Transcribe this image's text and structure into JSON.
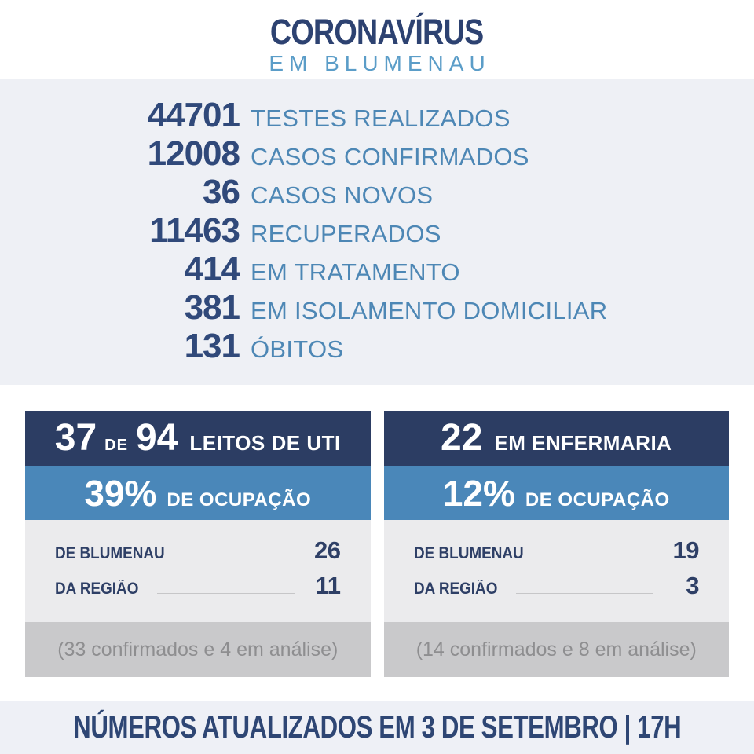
{
  "header": {
    "title": "CORONAVÍRUS",
    "subtitle": "EM BLUMENAU"
  },
  "stats": {
    "items": [
      {
        "value": "44701",
        "label": "TESTES REALIZADOS"
      },
      {
        "value": "12008",
        "label": "CASOS CONFIRMADOS"
      },
      {
        "value": "36",
        "label": "CASOS NOVOS"
      },
      {
        "value": "11463",
        "label": "RECUPERADOS"
      },
      {
        "value": "414",
        "label": "EM TRATAMENTO"
      },
      {
        "value": "381",
        "label": "EM ISOLAMENTO DOMICILIAR"
      },
      {
        "value": "131",
        "label": "ÓBITOS"
      }
    ]
  },
  "cards": [
    {
      "header": {
        "value": "37",
        "connector": "DE",
        "total": "94",
        "label": "LEITOS DE UTI"
      },
      "occupancy": {
        "value": "39%",
        "label": "DE OCUPAÇÃO"
      },
      "rows": [
        {
          "label": "DE BLUMENAU",
          "value": "26"
        },
        {
          "label": "DA REGIÃO",
          "value": "11"
        }
      ],
      "note": "(33 confirmados e 4 em análise)"
    },
    {
      "header": {
        "value": "22",
        "label": "EM ENFERMARIA"
      },
      "occupancy": {
        "value": "12%",
        "label": "DE OCUPAÇÃO"
      },
      "rows": [
        {
          "label": "DE BLUMENAU",
          "value": "19"
        },
        {
          "label": "DA REGIÃO",
          "value": "3"
        }
      ],
      "note": "(14 confirmados e 8 em análise)"
    }
  ],
  "footer": {
    "text": "NÚMEROS ATUALIZADOS EM 3 DE SETEMBRO | 17H"
  },
  "colors": {
    "navy_band": "#2c3d63",
    "blue_band": "#4a87b9",
    "stats_panel_bg": "#eef0f5",
    "card_body_bg": "#ebebed",
    "note_band_bg": "#c9c9cb",
    "number_navy": "#30497a",
    "label_blue": "#4d87b5",
    "title_navy": "#2d4271",
    "subtitle_blue": "#5b9dc8",
    "note_text_gray": "#8e8e90",
    "footer_bg": "#eef0f6",
    "footer_text": "#2e4674"
  },
  "chart_data": {
    "type": "table",
    "title": "CORONAVÍRUS EM BLUMENAU",
    "stats": [
      {
        "label": "TESTES REALIZADOS",
        "value": 44701
      },
      {
        "label": "CASOS CONFIRMADOS",
        "value": 12008
      },
      {
        "label": "CASOS NOVOS",
        "value": 36
      },
      {
        "label": "RECUPERADOS",
        "value": 11463
      },
      {
        "label": "EM TRATAMENTO",
        "value": 414
      },
      {
        "label": "EM ISOLAMENTO DOMICILIAR",
        "value": 381
      },
      {
        "label": "ÓBITOS",
        "value": 131
      }
    ],
    "uti": {
      "ocupados": 37,
      "total_leitos": 94,
      "ocupacao_pct": 39,
      "de_blumenau": 26,
      "da_regiao": 11,
      "confirmados": 33,
      "em_analise": 4
    },
    "enfermaria": {
      "ocupados": 22,
      "ocupacao_pct": 12,
      "de_blumenau": 19,
      "da_regiao": 3,
      "confirmados": 14,
      "em_analise": 8
    },
    "atualizacao": "3 DE SETEMBRO | 17H"
  }
}
